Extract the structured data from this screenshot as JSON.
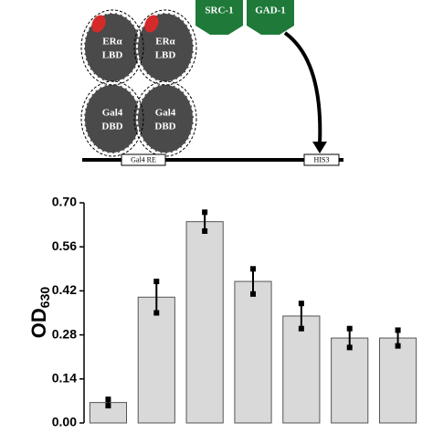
{
  "diagram": {
    "nodes": [
      "ERα",
      "LBD",
      "ERα",
      "LBD",
      "Gal4",
      "DBD",
      "Gal4",
      "DBD",
      "SRC-1",
      "GAD-1"
    ],
    "sites": [
      "Gal4 RE",
      "HIS3"
    ]
  },
  "chart_data": {
    "type": "bar",
    "y_label": "OD",
    "y_label_sub": "630",
    "categories": [
      null,
      null,
      null,
      null,
      null,
      null,
      null
    ],
    "values": [
      0.065,
      0.4,
      0.64,
      0.45,
      0.34,
      0.27,
      0.27
    ],
    "errors": [
      0.01,
      0.05,
      0.03,
      0.04,
      0.04,
      0.03,
      0.025
    ],
    "color": "#d9d9d9",
    "ylim": [
      0,
      0.7
    ],
    "yticks": [
      {
        "value": 0,
        "label": "0.00"
      },
      0.14,
      0.28,
      0.42,
      0.56,
      {
        "value": 0.7,
        "label": "0.70"
      }
    ]
  }
}
